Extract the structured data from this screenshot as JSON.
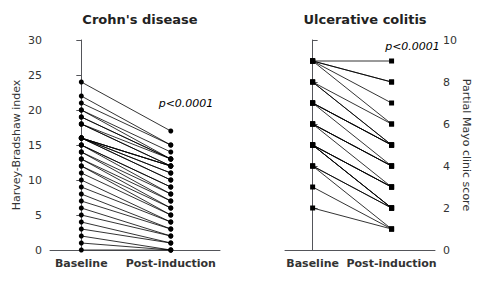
{
  "chart_data": [
    {
      "type": "slope",
      "title": "Crohn's disease",
      "ylabel": "Harvey-Bradshaw index",
      "categories": [
        "Baseline",
        "Post-induction"
      ],
      "values": [
        [
          24,
          22,
          21,
          20,
          20,
          19,
          19,
          18,
          18,
          18,
          16,
          16,
          16,
          16,
          16,
          16,
          16,
          15,
          15,
          15,
          14,
          14,
          13,
          13,
          12,
          12,
          11,
          10,
          9,
          8,
          7,
          6,
          5,
          4,
          3,
          2,
          1,
          0
        ],
        [
          17,
          15,
          15,
          14,
          13,
          13,
          13,
          13,
          12,
          12,
          12,
          12,
          12,
          11,
          11,
          10,
          10,
          9,
          9,
          8,
          8,
          7,
          7,
          6,
          6,
          5,
          5,
          4,
          4,
          3,
          3,
          2,
          2,
          1,
          1,
          0,
          0,
          0
        ]
      ],
      "ylim": [
        0,
        30
      ],
      "yticks": [
        0,
        5,
        10,
        15,
        20,
        25,
        30
      ],
      "annotations": [
        "p<0.0001"
      ],
      "color": "#000000",
      "marker": "circle",
      "grid": false
    },
    {
      "type": "slope",
      "title": "Ulcerative colitis",
      "ylabel": "Partial Mayo clinic score",
      "categories": [
        "Baseline",
        "Post-induction"
      ],
      "values": [
        [
          9,
          9,
          9,
          9,
          9,
          8,
          8,
          8,
          7,
          7,
          7,
          7,
          6,
          6,
          6,
          6,
          5,
          5,
          5,
          5,
          5,
          5,
          4,
          4,
          4,
          3,
          2
        ],
        [
          9,
          8,
          8,
          7,
          6,
          6,
          5,
          5,
          5,
          5,
          5,
          4,
          4,
          4,
          4,
          3,
          3,
          3,
          3,
          2,
          2,
          2,
          2,
          2,
          1,
          1,
          1
        ]
      ],
      "ylim": [
        0,
        10
      ],
      "yticks": [
        0,
        2,
        4,
        6,
        8,
        10
      ],
      "annotations": [
        "p<0.0001"
      ],
      "color": "#000000",
      "marker": "square",
      "grid": false
    }
  ]
}
